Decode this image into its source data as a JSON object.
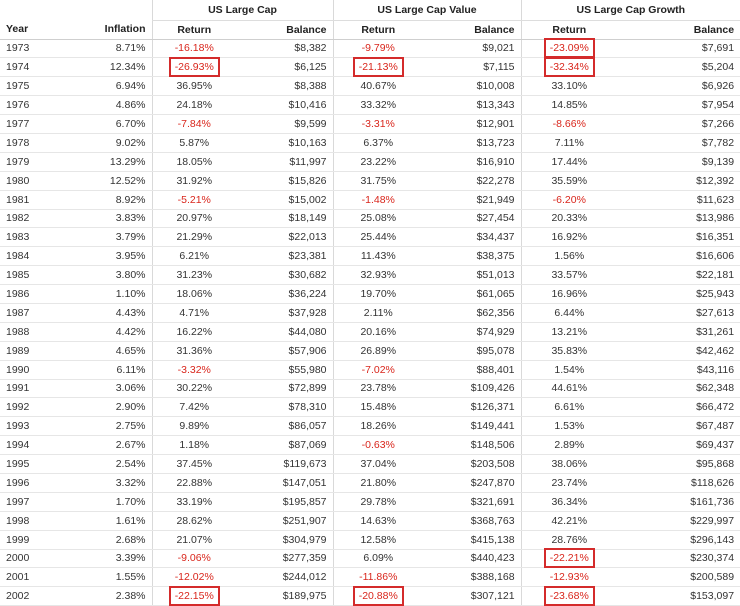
{
  "headers": {
    "groups": [
      "US Large Cap",
      "US Large Cap Value",
      "US Large Cap Growth"
    ],
    "year": "Year",
    "inflation": "Inflation",
    "return": "Return",
    "balance": "Balance"
  },
  "rows": [
    {
      "year": "1973",
      "inflation": "8.71%",
      "lc_return": "-16.18%",
      "lc_balance": "$8,382",
      "lv_return": "-9.79%",
      "lv_balance": "$9,021",
      "lg_return": "-23.09%",
      "lg_balance": "$7,691"
    },
    {
      "year": "1974",
      "inflation": "12.34%",
      "lc_return": "-26.93%",
      "lc_balance": "$6,125",
      "lv_return": "-21.13%",
      "lv_balance": "$7,115",
      "lg_return": "-32.34%",
      "lg_balance": "$5,204"
    },
    {
      "year": "1975",
      "inflation": "6.94%",
      "lc_return": "36.95%",
      "lc_balance": "$8,388",
      "lv_return": "40.67%",
      "lv_balance": "$10,008",
      "lg_return": "33.10%",
      "lg_balance": "$6,926"
    },
    {
      "year": "1976",
      "inflation": "4.86%",
      "lc_return": "24.18%",
      "lc_balance": "$10,416",
      "lv_return": "33.32%",
      "lv_balance": "$13,343",
      "lg_return": "14.85%",
      "lg_balance": "$7,954"
    },
    {
      "year": "1977",
      "inflation": "6.70%",
      "lc_return": "-7.84%",
      "lc_balance": "$9,599",
      "lv_return": "-3.31%",
      "lv_balance": "$12,901",
      "lg_return": "-8.66%",
      "lg_balance": "$7,266"
    },
    {
      "year": "1978",
      "inflation": "9.02%",
      "lc_return": "5.87%",
      "lc_balance": "$10,163",
      "lv_return": "6.37%",
      "lv_balance": "$13,723",
      "lg_return": "7.11%",
      "lg_balance": "$7,782"
    },
    {
      "year": "1979",
      "inflation": "13.29%",
      "lc_return": "18.05%",
      "lc_balance": "$11,997",
      "lv_return": "23.22%",
      "lv_balance": "$16,910",
      "lg_return": "17.44%",
      "lg_balance": "$9,139"
    },
    {
      "year": "1980",
      "inflation": "12.52%",
      "lc_return": "31.92%",
      "lc_balance": "$15,826",
      "lv_return": "31.75%",
      "lv_balance": "$22,278",
      "lg_return": "35.59%",
      "lg_balance": "$12,392"
    },
    {
      "year": "1981",
      "inflation": "8.92%",
      "lc_return": "-5.21%",
      "lc_balance": "$15,002",
      "lv_return": "-1.48%",
      "lv_balance": "$21,949",
      "lg_return": "-6.20%",
      "lg_balance": "$11,623"
    },
    {
      "year": "1982",
      "inflation": "3.83%",
      "lc_return": "20.97%",
      "lc_balance": "$18,149",
      "lv_return": "25.08%",
      "lv_balance": "$27,454",
      "lg_return": "20.33%",
      "lg_balance": "$13,986"
    },
    {
      "year": "1983",
      "inflation": "3.79%",
      "lc_return": "21.29%",
      "lc_balance": "$22,013",
      "lv_return": "25.44%",
      "lv_balance": "$34,437",
      "lg_return": "16.92%",
      "lg_balance": "$16,351"
    },
    {
      "year": "1984",
      "inflation": "3.95%",
      "lc_return": "6.21%",
      "lc_balance": "$23,381",
      "lv_return": "11.43%",
      "lv_balance": "$38,375",
      "lg_return": "1.56%",
      "lg_balance": "$16,606"
    },
    {
      "year": "1985",
      "inflation": "3.80%",
      "lc_return": "31.23%",
      "lc_balance": "$30,682",
      "lv_return": "32.93%",
      "lv_balance": "$51,013",
      "lg_return": "33.57%",
      "lg_balance": "$22,181"
    },
    {
      "year": "1986",
      "inflation": "1.10%",
      "lc_return": "18.06%",
      "lc_balance": "$36,224",
      "lv_return": "19.70%",
      "lv_balance": "$61,065",
      "lg_return": "16.96%",
      "lg_balance": "$25,943"
    },
    {
      "year": "1987",
      "inflation": "4.43%",
      "lc_return": "4.71%",
      "lc_balance": "$37,928",
      "lv_return": "2.11%",
      "lv_balance": "$62,356",
      "lg_return": "6.44%",
      "lg_balance": "$27,613"
    },
    {
      "year": "1988",
      "inflation": "4.42%",
      "lc_return": "16.22%",
      "lc_balance": "$44,080",
      "lv_return": "20.16%",
      "lv_balance": "$74,929",
      "lg_return": "13.21%",
      "lg_balance": "$31,261"
    },
    {
      "year": "1989",
      "inflation": "4.65%",
      "lc_return": "31.36%",
      "lc_balance": "$57,906",
      "lv_return": "26.89%",
      "lv_balance": "$95,078",
      "lg_return": "35.83%",
      "lg_balance": "$42,462"
    },
    {
      "year": "1990",
      "inflation": "6.11%",
      "lc_return": "-3.32%",
      "lc_balance": "$55,980",
      "lv_return": "-7.02%",
      "lv_balance": "$88,401",
      "lg_return": "1.54%",
      "lg_balance": "$43,116"
    },
    {
      "year": "1991",
      "inflation": "3.06%",
      "lc_return": "30.22%",
      "lc_balance": "$72,899",
      "lv_return": "23.78%",
      "lv_balance": "$109,426",
      "lg_return": "44.61%",
      "lg_balance": "$62,348"
    },
    {
      "year": "1992",
      "inflation": "2.90%",
      "lc_return": "7.42%",
      "lc_balance": "$78,310",
      "lv_return": "15.48%",
      "lv_balance": "$126,371",
      "lg_return": "6.61%",
      "lg_balance": "$66,472"
    },
    {
      "year": "1993",
      "inflation": "2.75%",
      "lc_return": "9.89%",
      "lc_balance": "$86,057",
      "lv_return": "18.26%",
      "lv_balance": "$149,441",
      "lg_return": "1.53%",
      "lg_balance": "$67,487"
    },
    {
      "year": "1994",
      "inflation": "2.67%",
      "lc_return": "1.18%",
      "lc_balance": "$87,069",
      "lv_return": "-0.63%",
      "lv_balance": "$148,506",
      "lg_return": "2.89%",
      "lg_balance": "$69,437"
    },
    {
      "year": "1995",
      "inflation": "2.54%",
      "lc_return": "37.45%",
      "lc_balance": "$119,673",
      "lv_return": "37.04%",
      "lv_balance": "$203,508",
      "lg_return": "38.06%",
      "lg_balance": "$95,868"
    },
    {
      "year": "1996",
      "inflation": "3.32%",
      "lc_return": "22.88%",
      "lc_balance": "$147,051",
      "lv_return": "21.80%",
      "lv_balance": "$247,870",
      "lg_return": "23.74%",
      "lg_balance": "$118,626"
    },
    {
      "year": "1997",
      "inflation": "1.70%",
      "lc_return": "33.19%",
      "lc_balance": "$195,857",
      "lv_return": "29.78%",
      "lv_balance": "$321,691",
      "lg_return": "36.34%",
      "lg_balance": "$161,736"
    },
    {
      "year": "1998",
      "inflation": "1.61%",
      "lc_return": "28.62%",
      "lc_balance": "$251,907",
      "lv_return": "14.63%",
      "lv_balance": "$368,763",
      "lg_return": "42.21%",
      "lg_balance": "$229,997"
    },
    {
      "year": "1999",
      "inflation": "2.68%",
      "lc_return": "21.07%",
      "lc_balance": "$304,979",
      "lv_return": "12.58%",
      "lv_balance": "$415,138",
      "lg_return": "28.76%",
      "lg_balance": "$296,143"
    },
    {
      "year": "2000",
      "inflation": "3.39%",
      "lc_return": "-9.06%",
      "lc_balance": "$277,359",
      "lv_return": "6.09%",
      "lv_balance": "$440,423",
      "lg_return": "-22.21%",
      "lg_balance": "$230,374"
    },
    {
      "year": "2001",
      "inflation": "1.55%",
      "lc_return": "-12.02%",
      "lc_balance": "$244,012",
      "lv_return": "-11.86%",
      "lv_balance": "$388,168",
      "lg_return": "-12.93%",
      "lg_balance": "$200,589"
    },
    {
      "year": "2002",
      "inflation": "2.38%",
      "lc_return": "-22.15%",
      "lc_balance": "$189,975",
      "lv_return": "-20.88%",
      "lv_balance": "$307,121",
      "lg_return": "-23.68%",
      "lg_balance": "$153,097"
    }
  ],
  "highlighted": [
    {
      "year": "1973",
      "column": "lg_return"
    },
    {
      "year": "1974",
      "column": "lc_return"
    },
    {
      "year": "1974",
      "column": "lv_return"
    },
    {
      "year": "1974",
      "column": "lg_return"
    },
    {
      "year": "2000",
      "column": "lg_return"
    },
    {
      "year": "2002",
      "column": "lc_return"
    },
    {
      "year": "2002",
      "column": "lv_return"
    },
    {
      "year": "2002",
      "column": "lg_return"
    }
  ],
  "colors": {
    "negative": "#d9261c",
    "highlight_border": "#d42b2b",
    "text": "#333333",
    "row_divider": "#e6e6e6"
  }
}
